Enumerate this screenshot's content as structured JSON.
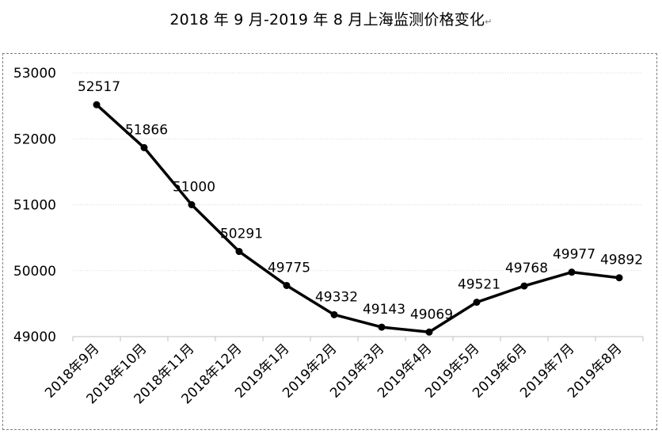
{
  "title": "2018 年 9 月-2019 年 8 月上海监测价格变化",
  "title_mark": "↵",
  "chart_data": {
    "type": "line",
    "title": "2018 年 9 月-2019 年 8 月上海监测价格变化",
    "categories": [
      "2018年9月",
      "2018年10月",
      "2018年11月",
      "2018年12月",
      "2019年1月",
      "2019年2月",
      "2019年3月",
      "2019年4月",
      "2019年5月",
      "2019年6月",
      "2019年7月",
      "2019年8月"
    ],
    "values": [
      52517,
      51866,
      51000,
      50291,
      49775,
      49332,
      49143,
      49069,
      49521,
      49768,
      49977,
      49892
    ],
    "data_labels": [
      "52517",
      "51866",
      "51000",
      "50291",
      "49775",
      "49332",
      "49143",
      "49069",
      "49521",
      "49768",
      "49977",
      "49892"
    ],
    "ylim": [
      49000,
      53000
    ],
    "yticks": [
      "49000",
      "50000",
      "51000",
      "52000",
      "53000"
    ],
    "xlabel": "",
    "ylabel": "",
    "grid": true,
    "legend": "none",
    "colors": {
      "line": "#000000",
      "marker": "#000000",
      "grid": "#d9d9d9",
      "border": "#7f7f7f"
    }
  }
}
